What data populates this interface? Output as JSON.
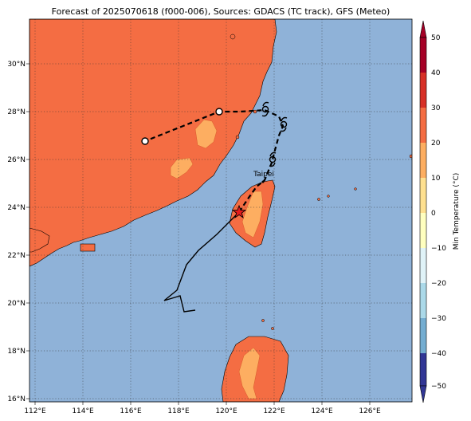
{
  "title": "Forecast of 2025070618 (f000-006), Sources: GDACS (TC track), GFS (Meteo)",
  "map": {
    "lon_range": [
      111.7,
      127.8
    ],
    "lat_range": [
      15.8,
      31.9
    ],
    "x_ticks": [
      "112°E",
      "114°E",
      "116°E",
      "118°E",
      "120°E",
      "122°E",
      "124°E",
      "126°E"
    ],
    "y_ticks": [
      "30°N",
      "28°N",
      "26°N",
      "24°N",
      "22°N",
      "20°N",
      "18°N",
      "16°N"
    ],
    "gridlines": "dotted",
    "city_label": "Taipei",
    "colors": {
      "ocean": "#8fb2d8",
      "land_warm": "#f46d43",
      "land_hot": "#fdae61",
      "track": "#000000"
    }
  },
  "colorbar": {
    "label": "Min Temperature (°C)",
    "ticks": [
      "50",
      "40",
      "30",
      "20",
      "10",
      "0",
      "−10",
      "−20",
      "−30",
      "−40",
      "−50"
    ],
    "colors_top_to_bottom": [
      "#a50026",
      "#d73027",
      "#f46d43",
      "#fdae61",
      "#fee090",
      "#ffffbf",
      "#e0f3f8",
      "#abd9e9",
      "#74add1",
      "#4575b4",
      "#313695"
    ]
  },
  "track": {
    "past": "solid black line",
    "forecast": "dashed black line",
    "symbols": [
      "open circles (forecast positions)",
      "typhoon symbols",
      "red star (current position)"
    ]
  }
}
